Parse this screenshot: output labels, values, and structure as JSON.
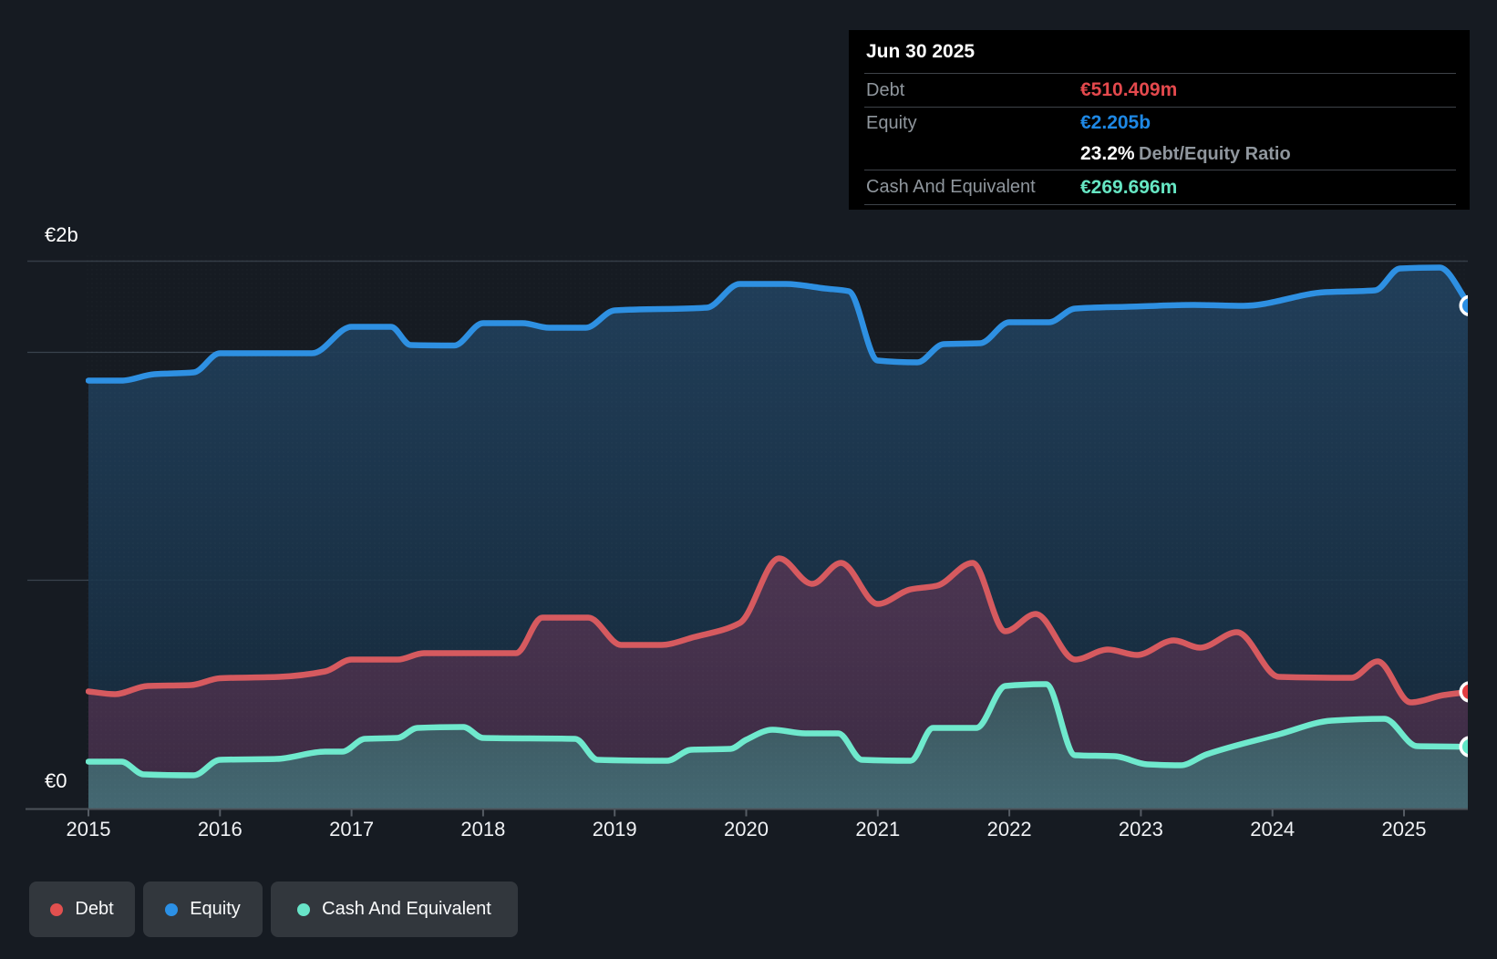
{
  "y_axis": {
    "top_label": "€2b",
    "bottom_label": "€0"
  },
  "x_axis": {
    "years": [
      "2015",
      "2016",
      "2017",
      "2018",
      "2019",
      "2020",
      "2021",
      "2022",
      "2023",
      "2024",
      "2025"
    ]
  },
  "tooltip": {
    "date": "Jun 30 2025",
    "rows": [
      {
        "label": "Debt",
        "value": "€510.409m",
        "color": "#e4494d"
      },
      {
        "label": "Equity",
        "value": "€2.205b",
        "color": "#1e88e5"
      },
      {
        "label": "Cash And Equivalent",
        "value": "€269.696m",
        "color": "#66e6c3"
      }
    ],
    "ratio_value": "23.2%",
    "ratio_label": "Debt/Equity Ratio"
  },
  "legend": [
    {
      "label": "Debt",
      "color": "#e2504f"
    },
    {
      "label": "Equity",
      "color": "#2b90e6"
    },
    {
      "label": "Cash And Equivalent",
      "color": "#68e4c8"
    }
  ],
  "chart_data": {
    "type": "area",
    "title": "Debt, Equity and Cash history",
    "x_range": [
      2015,
      2025.5
    ],
    "y_range_millions": [
      0,
      2400
    ],
    "y_gridlines_millions": [
      0,
      1000,
      2000
    ],
    "unit": "EUR millions",
    "grid": true,
    "legend_position": "bottom-left",
    "series": [
      {
        "name": "Equity",
        "line_color": "#2e90e2",
        "dot_color": "#2b8fe4",
        "fill_top": "rgba(34,66,95,0.92)",
        "fill_bottom": "rgba(21,42,60,0.88)",
        "points": [
          [
            2015,
            1876
          ],
          [
            2015.25,
            1876
          ],
          [
            2015.5,
            1904
          ],
          [
            2015.8,
            1912
          ],
          [
            2016,
            1996
          ],
          [
            2016.7,
            1996
          ],
          [
            2017,
            2112
          ],
          [
            2017.3,
            2112
          ],
          [
            2017.45,
            2032
          ],
          [
            2017.78,
            2030
          ],
          [
            2018,
            2128
          ],
          [
            2018.3,
            2128
          ],
          [
            2018.5,
            2108
          ],
          [
            2018.78,
            2108
          ],
          [
            2019,
            2184
          ],
          [
            2019.7,
            2196
          ],
          [
            2019.95,
            2300
          ],
          [
            2020.3,
            2300
          ],
          [
            2020.6,
            2280
          ],
          [
            2020.78,
            2268
          ],
          [
            2021,
            1964
          ],
          [
            2021.3,
            1956
          ],
          [
            2021.5,
            2036
          ],
          [
            2021.78,
            2040
          ],
          [
            2022,
            2132
          ],
          [
            2022.3,
            2132
          ],
          [
            2022.5,
            2192
          ],
          [
            2022.9,
            2200
          ],
          [
            2023.4,
            2208
          ],
          [
            2023.78,
            2204
          ],
          [
            2024.4,
            2264
          ],
          [
            2024.78,
            2272
          ],
          [
            2024.97,
            2368
          ],
          [
            2025.27,
            2372
          ],
          [
            2025.5,
            2205
          ]
        ]
      },
      {
        "name": "Debt",
        "line_color": "#d65a5f",
        "dot_color": "#e23d42",
        "fill_top": "#4b3551",
        "fill_bottom": "#3c2b43",
        "points": [
          [
            2015,
            512
          ],
          [
            2015.2,
            500
          ],
          [
            2015.45,
            536
          ],
          [
            2015.78,
            540
          ],
          [
            2016,
            570
          ],
          [
            2016.45,
            576
          ],
          [
            2016.8,
            600
          ],
          [
            2017,
            652
          ],
          [
            2017.35,
            652
          ],
          [
            2017.55,
            680
          ],
          [
            2018.25,
            680
          ],
          [
            2018.45,
            836
          ],
          [
            2018.8,
            836
          ],
          [
            2019.05,
            716
          ],
          [
            2019.35,
            716
          ],
          [
            2019.6,
            750
          ],
          [
            2019.95,
            812
          ],
          [
            2020.25,
            1096
          ],
          [
            2020.5,
            984
          ],
          [
            2020.72,
            1076
          ],
          [
            2021,
            896
          ],
          [
            2021.25,
            960
          ],
          [
            2021.45,
            976
          ],
          [
            2021.72,
            1076
          ],
          [
            2021.97,
            776
          ],
          [
            2022.2,
            852
          ],
          [
            2022.5,
            652
          ],
          [
            2022.75,
            696
          ],
          [
            2022.97,
            672
          ],
          [
            2023.25,
            736
          ],
          [
            2023.45,
            704
          ],
          [
            2023.73,
            772
          ],
          [
            2024.05,
            576
          ],
          [
            2024.6,
            572
          ],
          [
            2024.8,
            644
          ],
          [
            2025.05,
            464
          ],
          [
            2025.3,
            496
          ],
          [
            2025.5,
            510.409
          ]
        ]
      },
      {
        "name": "Cash And Equivalent",
        "line_color": "#6fe9cd",
        "dot_color": "#5fe7c6",
        "fill_top": "#3a545c",
        "fill_bottom": "#446872",
        "points": [
          [
            2015,
            204
          ],
          [
            2015.25,
            204
          ],
          [
            2015.42,
            148
          ],
          [
            2015.8,
            144
          ],
          [
            2016,
            212
          ],
          [
            2016.43,
            216
          ],
          [
            2016.8,
            248
          ],
          [
            2016.93,
            248
          ],
          [
            2017.1,
            304
          ],
          [
            2017.35,
            308
          ],
          [
            2017.5,
            352
          ],
          [
            2017.85,
            356
          ],
          [
            2018,
            308
          ],
          [
            2018.7,
            304
          ],
          [
            2018.87,
            212
          ],
          [
            2019.4,
            208
          ],
          [
            2019.58,
            256
          ],
          [
            2019.88,
            260
          ],
          [
            2020,
            300
          ],
          [
            2020.2,
            344
          ],
          [
            2020.45,
            328
          ],
          [
            2020.7,
            328
          ],
          [
            2020.88,
            212
          ],
          [
            2021.25,
            208
          ],
          [
            2021.42,
            352
          ],
          [
            2021.75,
            352
          ],
          [
            2021.97,
            536
          ],
          [
            2022.28,
            544
          ],
          [
            2022.5,
            232
          ],
          [
            2022.8,
            228
          ],
          [
            2023.05,
            192
          ],
          [
            2023.3,
            188
          ],
          [
            2023.5,
            236
          ],
          [
            2024.05,
            324
          ],
          [
            2024.45,
            384
          ],
          [
            2024.85,
            392
          ],
          [
            2025.1,
            272
          ],
          [
            2025.5,
            269.696
          ]
        ]
      }
    ]
  }
}
